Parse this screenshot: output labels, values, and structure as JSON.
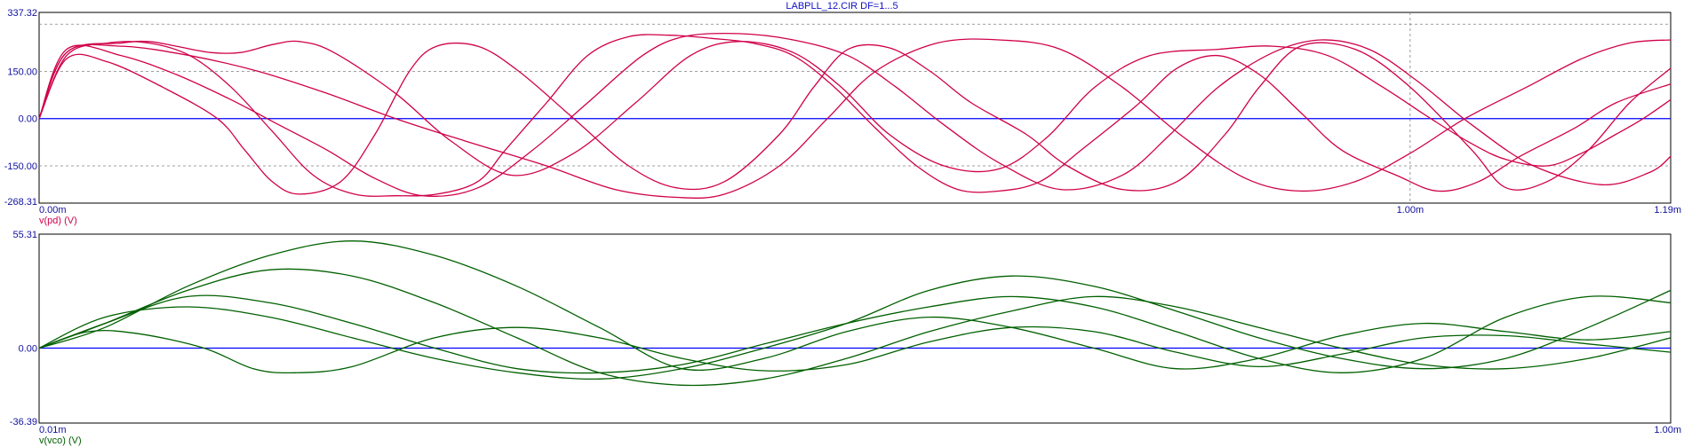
{
  "title": "LABPLL_12.CIR DF=1...5",
  "colors": {
    "frame": "#000000",
    "grid": "#808080",
    "zero": "#0000ff",
    "tick": "#1010a0",
    "top_trace": "#d0004a",
    "bottom_trace": "#006000"
  },
  "chart_data": [
    {
      "type": "line",
      "ylabel": "v(pd) (V)",
      "ylim": [
        -268.31,
        337.32
      ],
      "xlim": [
        0.0,
        1.19
      ],
      "x_unit": "m",
      "y_ticks": [
        "337.32",
        "150.00",
        "0.00",
        "-150.00",
        "-268.31"
      ],
      "y_tick_values": [
        337.32,
        150,
        0,
        -150,
        -268.31
      ],
      "x_ticks": [
        "0.00m",
        "1.00m",
        "1.19m"
      ],
      "x_tick_values": [
        0.0,
        1.0,
        1.19
      ],
      "dashed_gridlines_y": [
        300,
        150,
        -150
      ],
      "dashed_gridlines_x": [
        1.0
      ],
      "series": [
        {
          "x": [
            0,
            0.02,
            0.06,
            0.08,
            0.1,
            0.125,
            0.147,
            0.17,
            0.19,
            0.215,
            0.26,
            0.3,
            0.345,
            0.39,
            0.435,
            0.475,
            0.51,
            0.55,
            0.585,
            0.62,
            0.66,
            0.7,
            0.735,
            0.77,
            0.81,
            0.86,
            0.9,
            0.94,
            0.98,
            1.015,
            1.045,
            1.07,
            1.1,
            1.125,
            1.15,
            1.17,
            1.19
          ],
          "values": [
            0,
            210,
            240,
            245,
            230,
            210,
            210,
            235,
            245,
            210,
            80,
            -70,
            -180,
            -110,
            50,
            200,
            245,
            210,
            100,
            -50,
            -150,
            -160,
            -60,
            100,
            200,
            220,
            230,
            200,
            100,
            0,
            -80,
            -130,
            -150,
            -110,
            -50,
            0,
            60
          ]
        },
        {
          "x": [
            0,
            0.02,
            0.06,
            0.1,
            0.14,
            0.175,
            0.21,
            0.245,
            0.28,
            0.32,
            0.36,
            0.4,
            0.44,
            0.47,
            0.51,
            0.55,
            0.59,
            0.625,
            0.66,
            0.7,
            0.745,
            0.79,
            0.825,
            0.86,
            0.9,
            0.935,
            0.97,
            1.005,
            1.045,
            1.09,
            1.14,
            1.175,
            1.19
          ],
          "values": [
            0,
            220,
            200,
            140,
            60,
            -20,
            -100,
            -190,
            -245,
            -220,
            -100,
            50,
            200,
            260,
            270,
            250,
            200,
            100,
            -20,
            -140,
            -225,
            -180,
            -50,
            100,
            210,
            250,
            220,
            120,
            -20,
            -150,
            -210,
            -170,
            -120
          ]
        },
        {
          "x": [
            0,
            0.02,
            0.05,
            0.08,
            0.11,
            0.14,
            0.17,
            0.2,
            0.23,
            0.26,
            0.29,
            0.32,
            0.34,
            0.37,
            0.4,
            0.43,
            0.46,
            0.49,
            0.52,
            0.55,
            0.58,
            0.61,
            0.64,
            0.67,
            0.7,
            0.73,
            0.76,
            0.8,
            0.83,
            0.86,
            0.89,
            0.92,
            0.95,
            0.99,
            1.02,
            1.05,
            1.08,
            1.12,
            1.15,
            1.19
          ],
          "values": [
            0,
            200,
            240,
            240,
            200,
            100,
            -40,
            -180,
            -240,
            -245,
            -240,
            -200,
            -100,
            50,
            200,
            260,
            265,
            255,
            240,
            200,
            100,
            -30,
            -150,
            -225,
            -230,
            -200,
            -100,
            40,
            160,
            200,
            140,
            20,
            -100,
            -180,
            -230,
            -200,
            -120,
            -30,
            50,
            110
          ]
        },
        {
          "x": [
            0,
            0.02,
            0.06,
            0.11,
            0.16,
            0.21,
            0.26,
            0.31,
            0.37,
            0.42,
            0.465,
            0.5,
            0.54,
            0.575,
            0.61,
            0.655,
            0.7,
            0.745,
            0.79,
            0.835,
            0.88,
            0.92,
            0.96,
            1.0,
            1.04,
            1.085,
            1.125,
            1.16,
            1.19
          ],
          "values": [
            0,
            210,
            230,
            200,
            150,
            80,
            0,
            -70,
            -150,
            -225,
            -250,
            -240,
            -150,
            0,
            150,
            240,
            250,
            220,
            100,
            -60,
            -190,
            -230,
            -200,
            -110,
            0,
            100,
            190,
            240,
            250
          ]
        },
        {
          "x": [
            0,
            0.02,
            0.05,
            0.09,
            0.13,
            0.15,
            0.17,
            0.19,
            0.22,
            0.245,
            0.27,
            0.29,
            0.32,
            0.35,
            0.39,
            0.43,
            0.465,
            0.5,
            0.54,
            0.565,
            0.59,
            0.62,
            0.65,
            0.68,
            0.72,
            0.75,
            0.79,
            0.83,
            0.865,
            0.89,
            0.92,
            0.96,
            1.0,
            1.045,
            1.07,
            1.1,
            1.13,
            1.16,
            1.19
          ],
          "values": [
            0,
            190,
            180,
            100,
            0,
            -100,
            -200,
            -240,
            -200,
            -50,
            150,
            230,
            230,
            150,
            0,
            -150,
            -220,
            -200,
            -50,
            100,
            220,
            225,
            150,
            50,
            -50,
            -150,
            -225,
            -200,
            -50,
            100,
            230,
            220,
            100,
            -100,
            -220,
            -200,
            -100,
            50,
            160
          ]
        }
      ]
    },
    {
      "type": "line",
      "ylabel": "v(vco) (V)",
      "ylim": [
        -36.39,
        55.31
      ],
      "xlim": [
        0.01,
        1.0
      ],
      "x_unit": "m",
      "y_ticks": [
        "55.31",
        "0.00",
        "-36.39"
      ],
      "y_tick_values": [
        55.31,
        0,
        -36.39
      ],
      "x_ticks": [
        "0.01m",
        "1.00m"
      ],
      "x_tick_values": [
        0.01,
        1.0
      ],
      "series": [
        {
          "x": [
            0.01,
            0.04,
            0.07,
            0.11,
            0.14,
            0.165,
            0.2,
            0.25,
            0.3,
            0.35,
            0.4,
            0.45,
            0.5,
            0.55,
            0.6,
            0.65,
            0.7,
            0.75,
            0.8,
            0.85,
            0.9,
            0.95,
            1.0
          ],
          "values": [
            0,
            8,
            7,
            0,
            -10,
            -12,
            -9,
            5,
            10,
            5,
            -5,
            -11,
            -8,
            3,
            10,
            8,
            -2,
            -9,
            -3,
            5,
            6,
            2,
            -2
          ]
        },
        {
          "x": [
            0.01,
            0.05,
            0.1,
            0.15,
            0.2,
            0.25,
            0.3,
            0.35,
            0.4,
            0.45,
            0.5,
            0.55,
            0.6,
            0.65,
            0.7,
            0.75,
            0.8,
            0.85,
            0.9,
            0.95,
            1.0
          ],
          "values": [
            0,
            10,
            30,
            45,
            52,
            45,
            30,
            10,
            -10,
            -5,
            8,
            15,
            10,
            0,
            -10,
            -5,
            6,
            12,
            8,
            4,
            8
          ]
        },
        {
          "x": [
            0.01,
            0.05,
            0.1,
            0.15,
            0.2,
            0.25,
            0.3,
            0.35,
            0.4,
            0.45,
            0.5,
            0.55,
            0.6,
            0.65,
            0.7,
            0.75,
            0.8,
            0.85,
            0.9,
            0.95,
            1.0
          ],
          "values": [
            0,
            12,
            28,
            38,
            35,
            22,
            5,
            -12,
            -18,
            -15,
            -5,
            8,
            18,
            25,
            20,
            10,
            0,
            -8,
            -10,
            -5,
            5
          ]
        },
        {
          "x": [
            0.01,
            0.05,
            0.1,
            0.15,
            0.2,
            0.25,
            0.3,
            0.35,
            0.4,
            0.45,
            0.5,
            0.55,
            0.6,
            0.65,
            0.7,
            0.75,
            0.8,
            0.85,
            0.9,
            0.95,
            1.0
          ],
          "values": [
            0,
            15,
            20,
            15,
            5,
            -5,
            -12,
            -15,
            -10,
            0,
            12,
            28,
            35,
            30,
            18,
            5,
            -5,
            -10,
            -5,
            10,
            28
          ]
        },
        {
          "x": [
            0.01,
            0.05,
            0.1,
            0.15,
            0.2,
            0.25,
            0.3,
            0.35,
            0.4,
            0.45,
            0.5,
            0.55,
            0.6,
            0.65,
            0.7,
            0.75,
            0.8,
            0.85,
            0.9,
            0.95,
            1.0
          ],
          "values": [
            0,
            12,
            25,
            22,
            12,
            0,
            -10,
            -12,
            -8,
            2,
            12,
            20,
            25,
            20,
            8,
            -5,
            -12,
            -5,
            15,
            25,
            22
          ]
        }
      ]
    }
  ]
}
